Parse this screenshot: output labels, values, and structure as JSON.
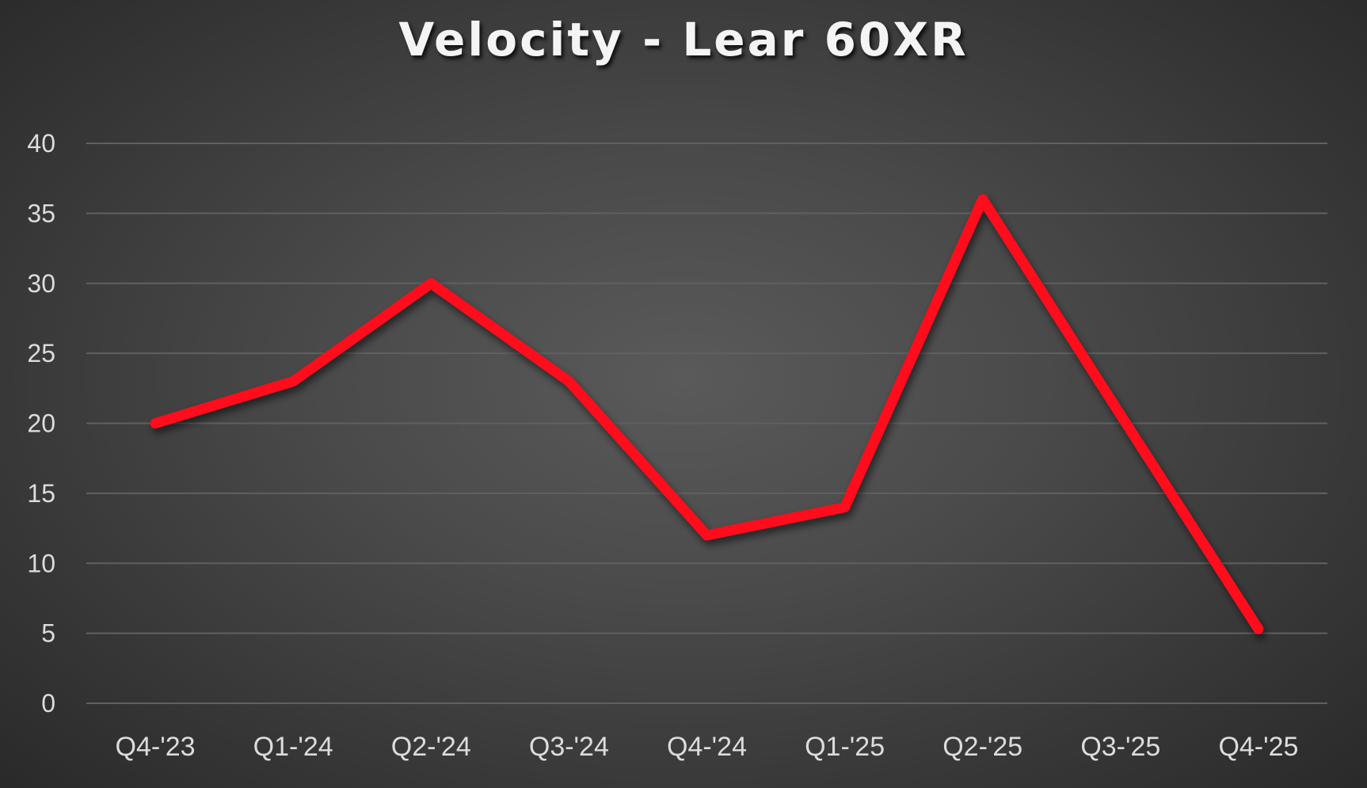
{
  "chart_data": {
    "type": "line",
    "title": "Velocity - Lear 60XR",
    "xlabel": "",
    "ylabel": "",
    "categories": [
      "Q4-'23",
      "Q1-'24",
      "Q2-'24",
      "Q3-'24",
      "Q4-'24",
      "Q1-'25",
      "Q2-'25",
      "Q3-'25",
      "Q4-'25"
    ],
    "series": [
      {
        "name": "Velocity",
        "color": "#ff0a1a",
        "values": [
          20,
          23,
          30,
          23,
          12,
          14,
          36,
          20.6,
          5.3
        ]
      }
    ],
    "ylim": [
      0,
      40
    ],
    "yticks": [
      0,
      5,
      10,
      15,
      20,
      25,
      30,
      35,
      40
    ],
    "grid": true,
    "legend": "none"
  },
  "colors": {
    "background_center": "#5a5a5a",
    "background_edge": "#262626",
    "gridline": "#606060",
    "text": "#dcdcdc",
    "line": "#ff0a1a"
  }
}
